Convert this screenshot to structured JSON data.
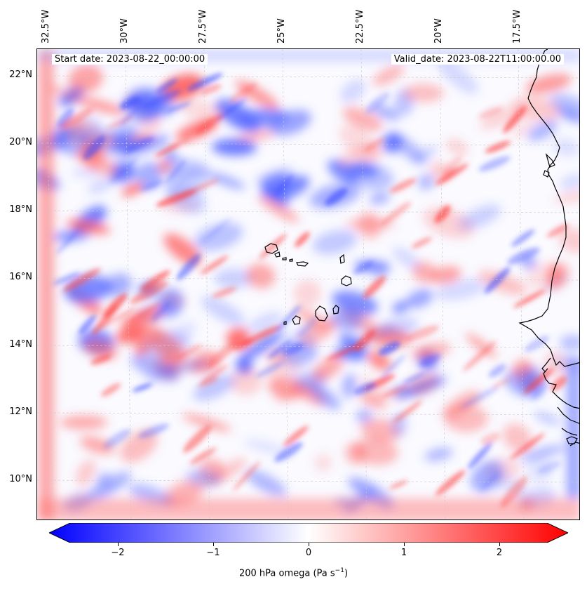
{
  "map": {
    "header_left": "Start date: 2023-08-22_00:00:00",
    "header_right": "Valid_date: 2023-08-22T11:00:00.00",
    "lon_labels": [
      "32.5°W",
      "30°W",
      "27.5°W",
      "25°W",
      "22.5°W",
      "20°W",
      "17.5°W"
    ],
    "lat_labels": [
      "22°N",
      "20°N",
      "18°N",
      "16°N",
      "14°N",
      "12°N",
      "10°N"
    ],
    "colormap": "bwr"
  },
  "colorbar": {
    "label_prefix": "200 hPa omega (Pa s",
    "label_exp": "−1",
    "label_suffix": ")",
    "ticks": [
      "−2",
      "−1",
      "0",
      "1",
      "2"
    ],
    "min_color": "#0000ff",
    "mid_color": "#ffffff",
    "max_color": "#ff0000"
  }
}
